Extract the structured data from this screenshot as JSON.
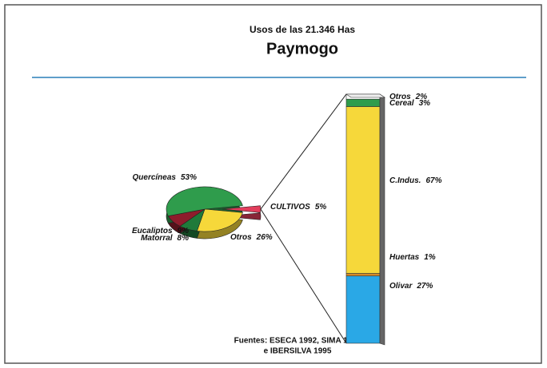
{
  "chart_data": [
    {
      "type": "pie",
      "title": "Usos de las 21.346 Has",
      "subtitle": "Paymogo",
      "source": [
        "Fuentes: ESECA 1992, SIMA 1995",
        "e IBERSILVA 1995"
      ],
      "categories": [
        "CULTIVOS",
        "Otros",
        "Matorral",
        "Eucaliptos",
        "Quercíneas"
      ],
      "values": [
        5,
        26,
        8,
        9,
        53
      ],
      "value_labels": [
        "5%",
        "26%",
        "8%",
        "9%",
        "53%"
      ],
      "colors": [
        "#e23d5c",
        "#f6d83a",
        "#1f7a3a",
        "#8e1c2c",
        "#2f9c4c"
      ]
    },
    {
      "type": "bar",
      "categories": [
        "Otros",
        "Cereal",
        "C.Indus.",
        "Huertas",
        "Olivar"
      ],
      "values": [
        2,
        3,
        67,
        1,
        27
      ],
      "value_labels": [
        "2%",
        "3%",
        "67%",
        "1%",
        "27%"
      ],
      "colors": [
        "#ffffff",
        "#2f9c4c",
        "#f6d83a",
        "#d58a2a",
        "#2aa8e6"
      ]
    }
  ]
}
